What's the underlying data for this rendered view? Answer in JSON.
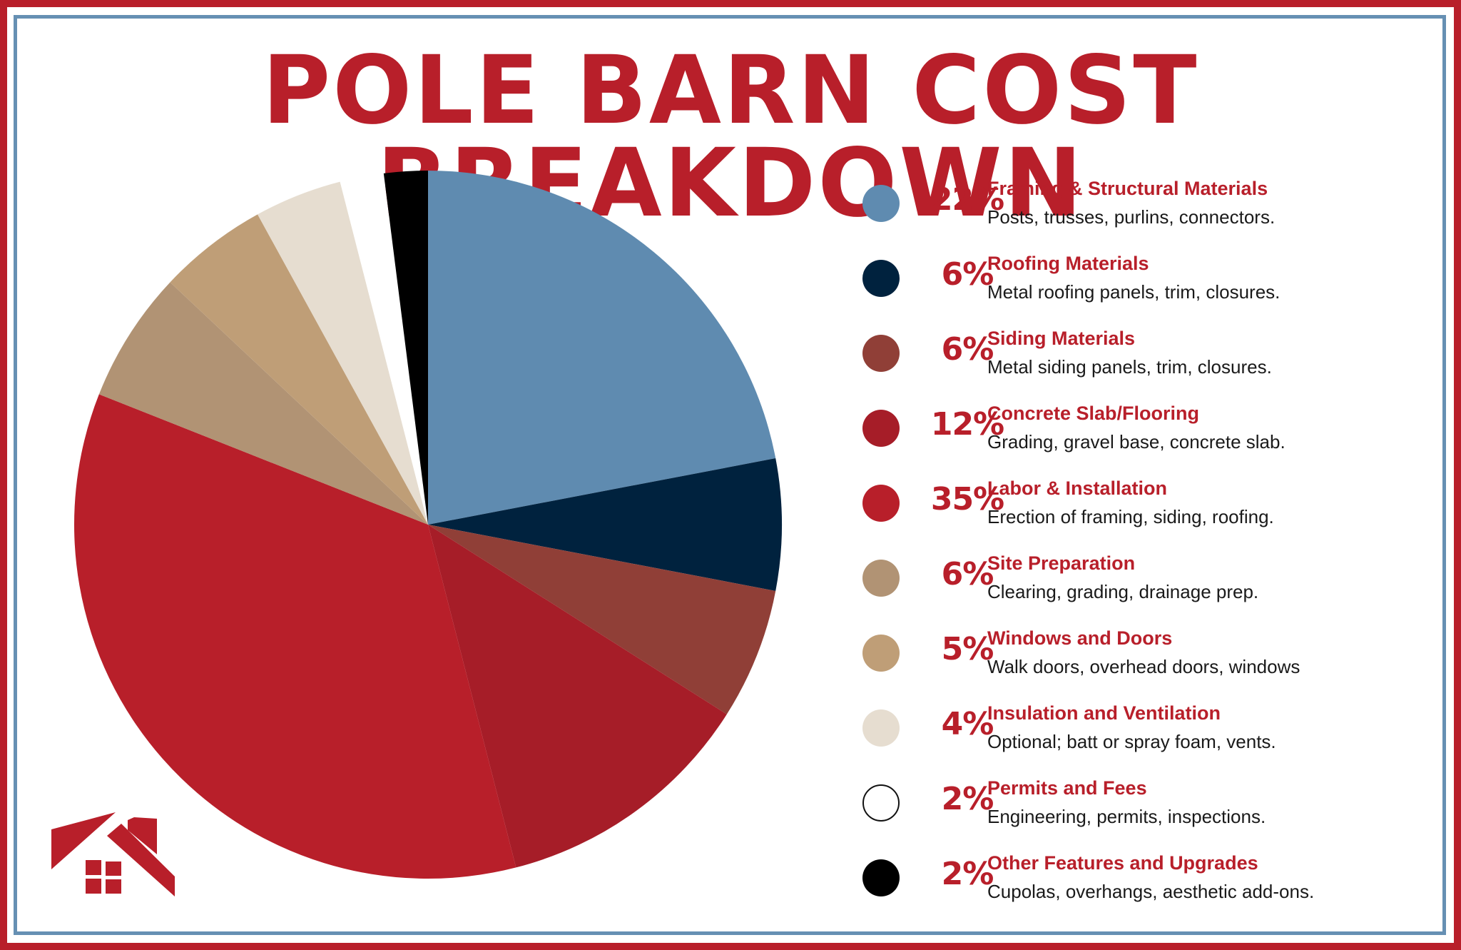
{
  "title": "POLE BARN COST BREAKDOWN",
  "legend": [
    {
      "pct": "22%",
      "label": "Framing & Structural Materials",
      "desc": "Posts, trusses, purlins, connectors.",
      "color": "#5f8bb0"
    },
    {
      "pct": "6%",
      "label": "Roofing Materials",
      "desc": "Metal roofing panels, trim, closures.",
      "color": "#00223e"
    },
    {
      "pct": "6%",
      "label": "Siding Materials",
      "desc": "Metal siding panels, trim, closures.",
      "color": "#903f37"
    },
    {
      "pct": "12%",
      "label": "Concrete Slab/Flooring",
      "desc": "Grading, gravel base, concrete slab.",
      "color": "#a61d28"
    },
    {
      "pct": "35%",
      "label": "Labor & Installation",
      "desc": "Erection of framing, siding, roofing.",
      "color": "#b81f2a"
    },
    {
      "pct": "6%",
      "label": "Site Preparation",
      "desc": "Clearing, grading, drainage prep.",
      "color": "#b19374"
    },
    {
      "pct": "5%",
      "label": "Windows and Doors",
      "desc": "Walk doors, overhead doors, windows",
      "color": "#bf9e77"
    },
    {
      "pct": "4%",
      "label": "Insulation and Ventilation",
      "desc": "Optional; batt or spray foam, vents.",
      "color": "#e6ddd0"
    },
    {
      "pct": "2%",
      "label": "Permits and Fees",
      "desc": "Engineering, permits, inspections.",
      "color": "#ffffff"
    },
    {
      "pct": "2%",
      "label": "Other Features and Upgrades",
      "desc": "Cupolas, overhangs, aesthetic add-ons.",
      "color": "#000000"
    }
  ],
  "colors": {
    "brand_red": "#b81f2a",
    "border_blue": "#6690b3"
  },
  "logo": {
    "icon": "house-roof-logo"
  },
  "chart_data": {
    "type": "pie",
    "title": "POLE BARN COST BREAKDOWN",
    "categories": [
      "Framing & Structural Materials",
      "Roofing Materials",
      "Siding Materials",
      "Concrete Slab/Flooring",
      "Labor & Installation",
      "Site Preparation",
      "Windows and Doors",
      "Insulation and Ventilation",
      "Permits and Fees",
      "Other Features and Upgrades"
    ],
    "values": [
      22,
      6,
      6,
      12,
      35,
      6,
      5,
      4,
      2,
      2
    ],
    "unit": "%",
    "colors": [
      "#5f8bb0",
      "#00223e",
      "#903f37",
      "#a61d28",
      "#b81f2a",
      "#b19374",
      "#bf9e77",
      "#e6ddd0",
      "#ffffff",
      "#000000"
    ],
    "start_angle": "12 o'clock",
    "direction": "clockwise",
    "legend_position": "right"
  }
}
